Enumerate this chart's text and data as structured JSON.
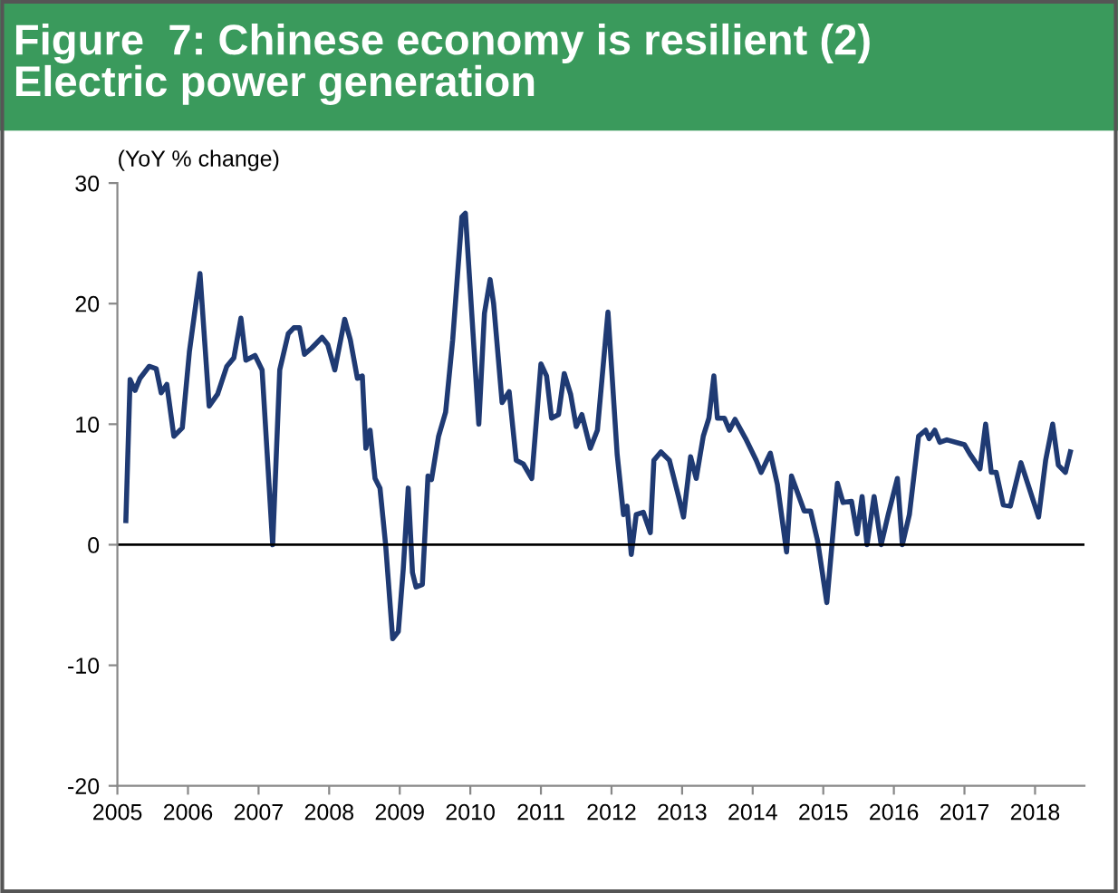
{
  "chart_data": {
    "type": "line",
    "title": "Figure  7: Chinese economy is resilient (2)\nElectric power generation",
    "ylabel": "(YoY % change)",
    "xlim": [
      2005,
      2018.7
    ],
    "xticks": [
      2005,
      2006,
      2007,
      2008,
      2009,
      2010,
      2011,
      2012,
      2013,
      2014,
      2015,
      2016,
      2017,
      2018
    ],
    "ylim": [
      -20,
      30
    ],
    "yticks": [
      -20,
      -10,
      0,
      10,
      20,
      30
    ],
    "grid": false,
    "legend": false,
    "marker": "none",
    "line_style": "solid",
    "ref_lines": [
      {
        "axis": "y",
        "value": 0,
        "color": "#000000"
      }
    ],
    "series": [
      {
        "color": "#1f3a73",
        "x": [
          2005.12,
          2005.18,
          2005.25,
          2005.32,
          2005.45,
          2005.55,
          2005.62,
          2005.7,
          2005.8,
          2005.92,
          2006.02,
          2006.17,
          2006.3,
          2006.42,
          2006.55,
          2006.65,
          2006.75,
          2006.82,
          2006.95,
          2007.05,
          2007.2,
          2007.3,
          2007.42,
          2007.5,
          2007.58,
          2007.65,
          2007.75,
          2007.9,
          2007.98,
          2008.08,
          2008.22,
          2008.3,
          2008.4,
          2008.47,
          2008.52,
          2008.58,
          2008.65,
          2008.72,
          2008.8,
          2008.9,
          2008.98,
          2009.05,
          2009.12,
          2009.18,
          2009.23,
          2009.32,
          2009.4,
          2009.45,
          2009.55,
          2009.65,
          2009.75,
          2009.88,
          2009.93,
          2010.12,
          2010.2,
          2010.28,
          2010.33,
          2010.45,
          2010.55,
          2010.65,
          2010.75,
          2010.87,
          2011.0,
          2011.08,
          2011.15,
          2011.25,
          2011.33,
          2011.42,
          2011.5,
          2011.58,
          2011.7,
          2011.8,
          2011.95,
          2012.08,
          2012.17,
          2012.22,
          2012.28,
          2012.35,
          2012.45,
          2012.55,
          2012.6,
          2012.7,
          2012.82,
          2012.95,
          2013.02,
          2013.12,
          2013.2,
          2013.3,
          2013.38,
          2013.45,
          2013.5,
          2013.6,
          2013.67,
          2013.75,
          2013.9,
          2014.05,
          2014.12,
          2014.25,
          2014.35,
          2014.48,
          2014.55,
          2014.68,
          2014.73,
          2014.82,
          2014.92,
          2015.05,
          2015.2,
          2015.28,
          2015.4,
          2015.48,
          2015.55,
          2015.62,
          2015.72,
          2015.82,
          2015.92,
          2016.05,
          2016.12,
          2016.22,
          2016.35,
          2016.45,
          2016.5,
          2016.58,
          2016.65,
          2016.75,
          2017.0,
          2017.08,
          2017.22,
          2017.3,
          2017.38,
          2017.45,
          2017.55,
          2017.65,
          2017.8,
          2018.05,
          2018.15,
          2018.25,
          2018.33,
          2018.43,
          2018.5
        ],
        "values": [
          2,
          13.7,
          12.8,
          13.8,
          14.8,
          14.6,
          12.6,
          13.3,
          9,
          9.7,
          16,
          22.5,
          11.5,
          12.5,
          14.8,
          15.5,
          18.8,
          15.3,
          15.7,
          14.5,
          0,
          14.5,
          17.5,
          18,
          18,
          15.8,
          16.3,
          17.2,
          16.6,
          14.5,
          18.7,
          17,
          13.8,
          14,
          8,
          9.5,
          5.5,
          4.7,
          0,
          -7.8,
          -7.2,
          -2,
          4.7,
          -2.3,
          -3.5,
          -3.3,
          5.7,
          5.4,
          9,
          11,
          17,
          27.2,
          27.5,
          10,
          19.2,
          22,
          20,
          11.8,
          12.7,
          7,
          6.7,
          5.5,
          15,
          14,
          10.5,
          10.8,
          14.2,
          12.5,
          9.8,
          10.8,
          8,
          9.5,
          19.3,
          7.5,
          2.5,
          3.2,
          -0.8,
          2.5,
          2.7,
          1,
          7,
          7.7,
          7,
          4,
          2.3,
          7.3,
          5.5,
          9,
          10.5,
          14,
          10.5,
          10.5,
          9.5,
          10.4,
          8.8,
          7,
          6,
          7.6,
          5,
          -0.6,
          5.7,
          3.6,
          2.8,
          2.8,
          0.3,
          -4.8,
          5.1,
          3.5,
          3.6,
          0.9,
          4,
          0,
          4,
          0,
          2.5,
          5.5,
          0,
          2.5,
          9,
          9.5,
          8.8,
          9.5,
          8.5,
          8.7,
          8.3,
          7.5,
          6.3,
          10,
          6,
          6,
          3.3,
          3.2,
          6.8,
          2.3,
          7,
          10,
          6.6,
          6,
          7.7
        ]
      }
    ]
  }
}
